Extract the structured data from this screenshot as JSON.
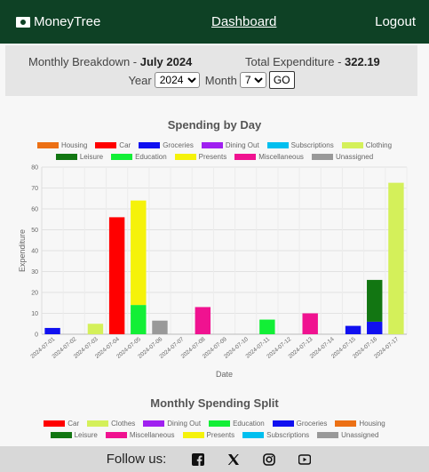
{
  "navbar": {
    "brand": "MoneyTree",
    "dashboard_link": "Dashboard",
    "logout_link": "Logout"
  },
  "summary": {
    "monthly_label": "Monthly Breakdown - ",
    "monthly_value": "July 2024",
    "total_label": "Total Expenditure - ",
    "total_value": "322.19"
  },
  "filter": {
    "year_label": "Year",
    "year_value": "2024",
    "month_label": "Month",
    "month_value": "7",
    "go_label": "GO"
  },
  "footer": {
    "follow_text": "Follow us:",
    "icons": [
      "facebook-icon",
      "x-icon",
      "instagram-icon",
      "youtube-icon"
    ]
  },
  "chart_data": [
    {
      "type": "bar",
      "stacked": true,
      "title": "Spending by Day",
      "xlabel": "Date",
      "ylabel": "Expenditure",
      "ylim": [
        0,
        80
      ],
      "yticks": [
        0,
        10,
        20,
        30,
        40,
        50,
        60,
        70,
        80
      ],
      "categories": [
        "2024-07-01",
        "2024-07-02",
        "2024-07-03",
        "2024-07-04",
        "2024-07-05",
        "2024-07-06",
        "2024-07-07",
        "2024-07-08",
        "2024-07-09",
        "2024-07-10",
        "2024-07-11",
        "2024-07-12",
        "2024-07-13",
        "2024-07-14",
        "2024-07-15",
        "2024-07-16",
        "2024-07-17"
      ],
      "series": [
        {
          "name": "Housing",
          "color": "#ec7014",
          "values": [
            0,
            0,
            0,
            0,
            0,
            0,
            0,
            0,
            0,
            0,
            0,
            0,
            0,
            0,
            0,
            0,
            0
          ]
        },
        {
          "name": "Car",
          "color": "#ff0000",
          "values": [
            0,
            0,
            0,
            56,
            0,
            0,
            0,
            0,
            0,
            0,
            0,
            0,
            0,
            0,
            0,
            0,
            0
          ]
        },
        {
          "name": "Groceries",
          "color": "#1010f0",
          "values": [
            3,
            0,
            0,
            0,
            0,
            0,
            0,
            0,
            0,
            0,
            0,
            0,
            0,
            0,
            4,
            6,
            0
          ]
        },
        {
          "name": "Dining Out",
          "color": "#a020f0",
          "values": [
            0,
            0,
            0,
            0,
            0,
            0,
            0,
            0,
            0,
            0,
            0,
            0,
            0,
            0,
            0,
            0,
            0
          ]
        },
        {
          "name": "Subscriptions",
          "color": "#00bfef",
          "values": [
            0,
            0,
            0,
            0,
            0,
            0,
            0,
            0,
            0,
            0,
            0,
            0,
            0,
            0,
            0,
            0,
            0
          ]
        },
        {
          "name": "Clothing",
          "color": "#d4f05a",
          "values": [
            0,
            0,
            5,
            0,
            0,
            0,
            0,
            0,
            0,
            0,
            0,
            0,
            0,
            0,
            0,
            0,
            72.5
          ]
        },
        {
          "name": "Leisure",
          "color": "#127612",
          "values": [
            0,
            0,
            0,
            0,
            0,
            0,
            0,
            0,
            0,
            0,
            0,
            0,
            0,
            0,
            0,
            20,
            0
          ]
        },
        {
          "name": "Education",
          "color": "#12ef36",
          "values": [
            0,
            0,
            0,
            0,
            14,
            0,
            0,
            0,
            0,
            0,
            7,
            0,
            0,
            0,
            0,
            0,
            0
          ]
        },
        {
          "name": "Presents",
          "color": "#f5f20a",
          "values": [
            0,
            0,
            0,
            0,
            50,
            0,
            0,
            0,
            0,
            0,
            0,
            0,
            0,
            0,
            0,
            0,
            0
          ]
        },
        {
          "name": "Miscellaneous",
          "color": "#f01290",
          "values": [
            0,
            0,
            0,
            0,
            0,
            0,
            0,
            13,
            0,
            0,
            0,
            0,
            10,
            0,
            0,
            0,
            0
          ]
        },
        {
          "name": "Unassigned",
          "color": "#999999",
          "values": [
            0,
            0,
            0,
            0,
            0,
            6.5,
            0,
            0,
            0,
            0,
            0,
            0,
            0,
            0,
            0,
            0,
            0
          ]
        }
      ],
      "grid": true,
      "legend": "top"
    },
    {
      "type": "pie",
      "title": "Monthly Spending Split",
      "legend": "top",
      "labels": [
        "Car",
        "Clothes",
        "Dining Out",
        "Education",
        "Groceries",
        "Housing",
        "Leisure",
        "Miscellaneous",
        "Presents",
        "Subscriptions",
        "Unassigned"
      ],
      "colors": [
        "#ff0000",
        "#d4f05a",
        "#a020f0",
        "#12ef36",
        "#1010f0",
        "#ec7014",
        "#127612",
        "#f01290",
        "#f5f20a",
        "#00bfef",
        "#999999"
      ]
    }
  ]
}
